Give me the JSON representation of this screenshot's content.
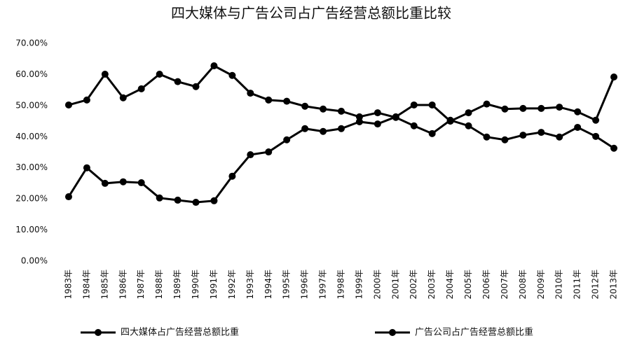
{
  "chart_data": {
    "type": "line",
    "title": "四大媒体与广告公司占广告经营总额比重比较",
    "categories": [
      "1983年",
      "1984年",
      "1985年",
      "1986年",
      "1987年",
      "1988年",
      "1989年",
      "1990年",
      "1991年",
      "1992年",
      "1993年",
      "1994年",
      "1995年",
      "1996年",
      "1997年",
      "1998年",
      "1999年",
      "2000年",
      "2001年",
      "2002年",
      "2003年",
      "2004年",
      "2005年",
      "2006年",
      "2007年",
      "2008年",
      "2009年",
      "2010年",
      "2011年",
      "2012年",
      "2013年"
    ],
    "series": [
      {
        "name": "四大媒体占广告经营总额比重",
        "color": "#000000",
        "values": [
          50.2,
          51.8,
          60.1,
          52.5,
          55.4,
          60.1,
          57.7,
          56.1,
          62.8,
          59.7,
          54.0,
          51.8,
          51.4,
          49.8,
          48.9,
          48.2,
          46.4,
          47.7,
          46.2,
          43.5,
          41.0,
          45.3,
          43.5,
          39.9,
          39.0,
          40.5,
          41.4,
          39.9,
          43.0,
          40.1,
          36.3
        ]
      },
      {
        "name": "广告公司占广告经营总额比重",
        "color": "#000000",
        "values": [
          20.7,
          30.0,
          25.0,
          25.5,
          25.2,
          20.3,
          19.6,
          18.9,
          19.4,
          27.3,
          34.2,
          35.1,
          39.0,
          42.6,
          41.7,
          42.6,
          44.8,
          44.1,
          46.4,
          50.2,
          50.2,
          45.0,
          47.7,
          50.5,
          48.9,
          49.1,
          49.1,
          49.5,
          48.0,
          45.3,
          59.2
        ]
      }
    ],
    "ylim": [
      0,
      70
    ],
    "yticks": [
      {
        "value": 0,
        "label": "0.00%"
      },
      {
        "value": 10,
        "label": "10.00%"
      },
      {
        "value": 20,
        "label": "20.00%"
      },
      {
        "value": 30,
        "label": "30.00%"
      },
      {
        "value": 40,
        "label": "40.00%"
      },
      {
        "value": 50,
        "label": "50.00%"
      },
      {
        "value": 60,
        "label": "60.00%"
      },
      {
        "value": 70,
        "label": "70.00%"
      }
    ],
    "grid": false,
    "legend": "bottom"
  }
}
